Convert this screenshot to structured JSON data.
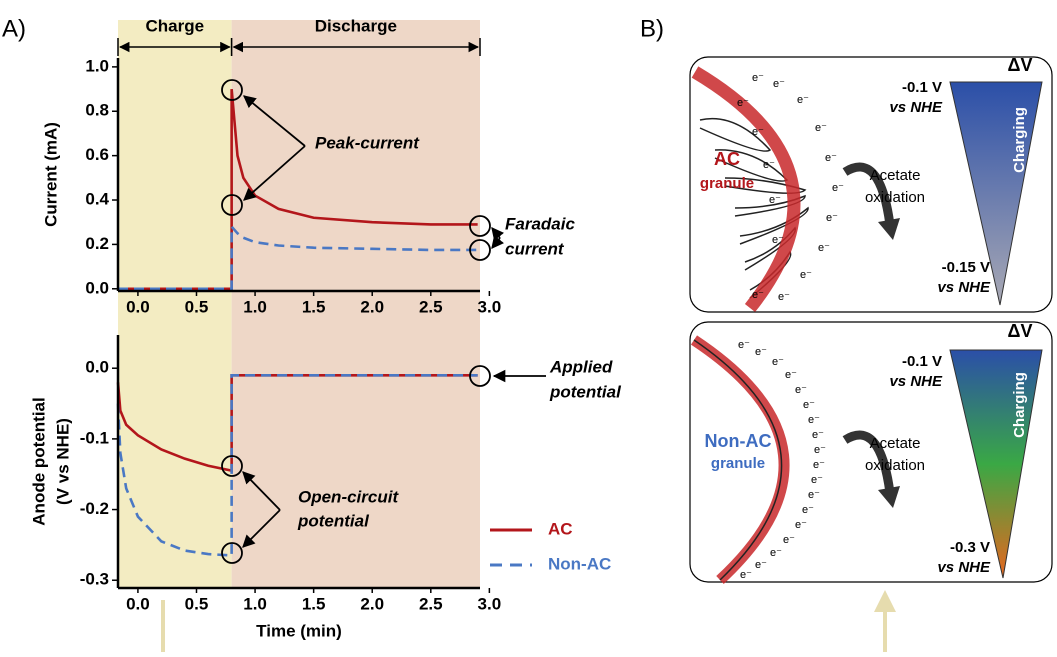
{
  "panel_labels": [
    "A)",
    "B)"
  ],
  "regions": [
    {
      "label": "Charge",
      "from": -0.17,
      "to": 0.8
    },
    {
      "label": "Discharge",
      "from": 0.8,
      "to": 2.92
    }
  ],
  "chart_data": [
    {
      "type": "line",
      "ylabel": [
        "Current (mA)"
      ],
      "x": [
        -0.17,
        0.8,
        0.8,
        0.85,
        0.9,
        1.0,
        1.2,
        1.5,
        2.0,
        2.5,
        2.9
      ],
      "series": [
        {
          "name": "AC",
          "color": "#b3161b",
          "dash": false,
          "values": [
            0,
            0,
            0.9,
            0.6,
            0.5,
            0.42,
            0.36,
            0.32,
            0.3,
            0.29,
            0.29
          ]
        },
        {
          "name": "Non-AC",
          "color": "#4a78c4",
          "dash": true,
          "values": [
            0,
            0,
            0.28,
            0.25,
            0.23,
            0.21,
            0.195,
            0.185,
            0.18,
            0.175,
            0.175
          ]
        }
      ],
      "xlim": [
        -0.17,
        2.92
      ],
      "ylim": [
        -0.01,
        1.04
      ],
      "xticks": [
        {
          "value": 0,
          "label": "0.0"
        },
        {
          "value": 0.5,
          "label": "0.5"
        },
        {
          "value": 1,
          "label": "1.0"
        },
        {
          "value": 1.5,
          "label": "1.5"
        },
        {
          "value": 2,
          "label": "2.0"
        },
        {
          "value": 2.5,
          "label": "2.5"
        },
        {
          "value": 3,
          "label": "3.0"
        }
      ],
      "yticks": [
        {
          "value": 0,
          "label": "0.0"
        },
        {
          "value": 0.2,
          "label": "0.2"
        },
        {
          "value": 0.4,
          "label": "0.4"
        },
        {
          "value": 0.6,
          "label": "0.6"
        },
        {
          "value": 0.8,
          "label": "0.8"
        },
        {
          "value": 1,
          "label": "1.0"
        }
      ],
      "annotations": [
        {
          "lines": [
            "Peak-current"
          ]
        },
        {
          "lines": [
            "Faradaic",
            "current"
          ]
        }
      ]
    },
    {
      "type": "line",
      "ylabel": [
        "Anode potential",
        "(V vs NHE)"
      ],
      "xlabel": "Time (min)",
      "x": [
        -0.17,
        -0.15,
        -0.1,
        0,
        0.2,
        0.4,
        0.6,
        0.8,
        0.8,
        2.9
      ],
      "series": [
        {
          "name": "AC",
          "color": "#b3161b",
          "dash": false,
          "values": [
            -0.02,
            -0.06,
            -0.08,
            -0.095,
            -0.115,
            -0.128,
            -0.138,
            -0.145,
            -0.01,
            -0.01
          ]
        },
        {
          "name": "Non-AC",
          "color": "#4a78c4",
          "dash": true,
          "values": [
            -0.05,
            -0.12,
            -0.17,
            -0.21,
            -0.245,
            -0.258,
            -0.263,
            -0.265,
            -0.01,
            -0.01
          ]
        }
      ],
      "xlim": [
        -0.17,
        2.92
      ],
      "ylim": [
        -0.311,
        0.047
      ],
      "xticks": [
        {
          "value": 0,
          "label": "0.0"
        },
        {
          "value": 0.5,
          "label": "0.5"
        },
        {
          "value": 1,
          "label": "1.0"
        },
        {
          "value": 1.5,
          "label": "1.5"
        },
        {
          "value": 2,
          "label": "2.0"
        },
        {
          "value": 2.5,
          "label": "2.5"
        },
        {
          "value": 3,
          "label": "3.0"
        }
      ],
      "yticks": [
        {
          "value": 0,
          "label": "0.0"
        },
        {
          "value": -0.1,
          "label": "-0.1"
        },
        {
          "value": -0.2,
          "label": "-0.2"
        },
        {
          "value": -0.3,
          "label": "-0.3"
        }
      ],
      "legend": "lower right",
      "annotations": [
        {
          "lines": [
            "Applied",
            "potential"
          ]
        },
        {
          "lines": [
            "Open-circuit",
            "potential"
          ]
        }
      ]
    }
  ],
  "panel_b": {
    "electron": "e⁻",
    "delta_v": "ΔV",
    "charging": "Charging",
    "reaction": [
      "Acetate",
      "oxidation"
    ],
    "boxes": [
      {
        "granule": [
          "AC",
          "granule"
        ],
        "top": [
          "-0.1 V",
          "vs NHE"
        ],
        "bottom": [
          "-0.15 V",
          "vs NHE"
        ]
      },
      {
        "granule": [
          "Non-AC",
          "granule"
        ],
        "top": [
          "-0.1 V",
          "vs NHE"
        ],
        "bottom": [
          "-0.3 V",
          "vs NHE"
        ]
      }
    ]
  }
}
